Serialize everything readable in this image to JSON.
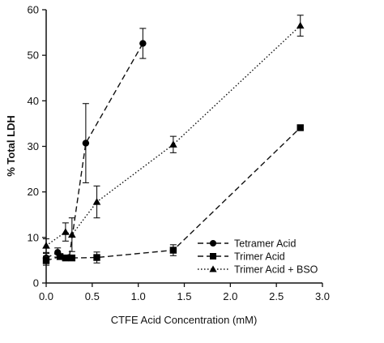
{
  "chart_data": {
    "type": "scatter",
    "xlabel": "CTFE Acid Concentration (mM)",
    "ylabel": "% Total LDH",
    "xlim": [
      0.0,
      3.0
    ],
    "ylim": [
      0,
      60
    ],
    "xticks": [
      "0.0",
      "0.5",
      "1.0",
      "1.5",
      "2.0",
      "2.5",
      "3.0"
    ],
    "yticks": [
      "0",
      "10",
      "20",
      "30",
      "40",
      "50",
      "60"
    ],
    "grid": false,
    "legend_position": "bottom-right",
    "series": [
      {
        "name": "Tetramer Acid",
        "marker": "circle",
        "line": "dashed",
        "x": [
          0.0,
          0.125,
          0.25,
          0.43,
          1.05
        ],
        "y": [
          5.5,
          6.7,
          5.6,
          30.7,
          52.6
        ],
        "err": [
          1.0,
          1.0,
          0.5,
          8.7,
          3.3
        ]
      },
      {
        "name": "Trimer Acid",
        "marker": "square",
        "line": "dashed",
        "x": [
          0.0,
          0.15,
          0.21,
          0.28,
          0.55,
          1.38,
          2.76
        ],
        "y": [
          4.9,
          5.8,
          5.5,
          5.5,
          5.6,
          7.2,
          34.1
        ],
        "err": [
          1.0,
          0.6,
          0.5,
          0.5,
          1.2,
          1.2,
          0.5
        ]
      },
      {
        "name": "Trimer Acid + BSO",
        "marker": "triangle",
        "line": "dotted",
        "x": [
          0.0,
          0.21,
          0.28,
          0.55,
          1.38,
          2.76
        ],
        "y": [
          8.2,
          11.2,
          10.6,
          17.8,
          30.4,
          56.5
        ],
        "err": [
          1.5,
          2.0,
          3.7,
          3.5,
          1.8,
          2.3
        ]
      }
    ]
  }
}
